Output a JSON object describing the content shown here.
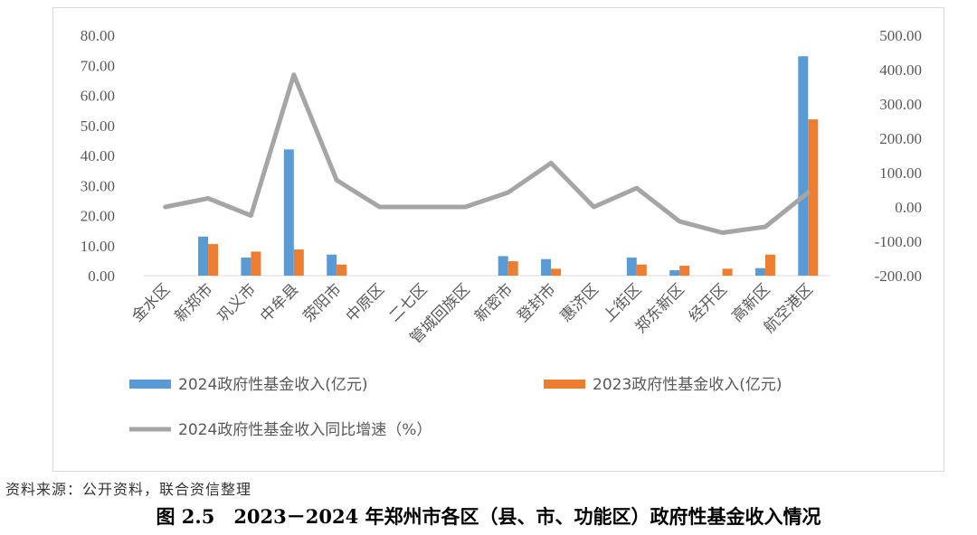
{
  "chart_data": {
    "type": "bar+line",
    "categories": [
      "金水区",
      "新郑市",
      "巩义市",
      "中牟县",
      "荥阳市",
      "中原区",
      "二七区",
      "管城回族区",
      "新密市",
      "登封市",
      "惠济区",
      "上街区",
      "郑东新区",
      "经开区",
      "高新区",
      "航空港区"
    ],
    "series": [
      {
        "name": "2024政府性基金收入(亿元)",
        "type": "bar",
        "axis": "left",
        "color": "#5b9bd5",
        "values": [
          0,
          13.0,
          6.0,
          42.0,
          7.0,
          0,
          0,
          0,
          6.5,
          5.5,
          0,
          6.0,
          1.8,
          0,
          2.5,
          73.0
        ]
      },
      {
        "name": "2023政府性基金收入(亿元)",
        "type": "bar",
        "axis": "left",
        "color": "#ed7d31",
        "values": [
          0,
          10.5,
          8.0,
          8.7,
          3.7,
          0,
          0,
          0,
          4.8,
          2.3,
          0,
          3.7,
          3.3,
          2.3,
          7.0,
          52.0
        ]
      },
      {
        "name": "2024政府性基金收入同比增速（%）",
        "type": "line",
        "axis": "right",
        "color": "#a5a5a5",
        "values": [
          0,
          25,
          -25,
          385,
          78,
          0,
          0,
          0,
          42,
          128,
          0,
          55,
          -42,
          -75,
          -58,
          42
        ]
      }
    ],
    "y_left": {
      "min": 0,
      "max": 80,
      "ticks": [
        "80.00",
        "70.00",
        "60.00",
        "50.00",
        "40.00",
        "30.00",
        "20.00",
        "10.00",
        "0.00"
      ]
    },
    "y_right": {
      "min": -200,
      "max": 500,
      "ticks": [
        "500.00",
        "400.00",
        "300.00",
        "200.00",
        "100.00",
        "0.00",
        "-100.00",
        "-200.00"
      ]
    },
    "grid": false,
    "legend_position": "bottom"
  },
  "source_note": "资料来源：公开资料，联合资信整理",
  "figure_caption": "图 2.5　2023－2024 年郑州市各区（县、市、功能区）政府性基金收入情况"
}
